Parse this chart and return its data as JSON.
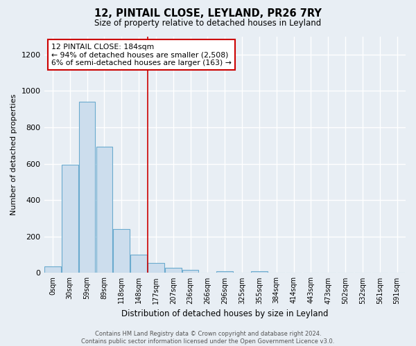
{
  "title_line1": "12, PINTAIL CLOSE, LEYLAND, PR26 7RY",
  "title_line2": "Size of property relative to detached houses in Leyland",
  "xlabel": "Distribution of detached houses by size in Leyland",
  "ylabel": "Number of detached properties",
  "bar_color": "#ccdded",
  "bar_edge_color": "#6aaace",
  "categories": [
    "0sqm",
    "30sqm",
    "59sqm",
    "89sqm",
    "118sqm",
    "148sqm",
    "177sqm",
    "207sqm",
    "236sqm",
    "266sqm",
    "296sqm",
    "325sqm",
    "355sqm",
    "384sqm",
    "414sqm",
    "443sqm",
    "473sqm",
    "502sqm",
    "532sqm",
    "561sqm",
    "591sqm"
  ],
  "values": [
    35,
    595,
    940,
    695,
    240,
    100,
    55,
    30,
    18,
    0,
    10,
    0,
    10,
    0,
    0,
    0,
    0,
    0,
    0,
    0,
    0
  ],
  "ylim": [
    0,
    1300
  ],
  "yticks": [
    0,
    200,
    400,
    600,
    800,
    1000,
    1200
  ],
  "property_line_x": 5.5,
  "annotation_text": "12 PINTAIL CLOSE: 184sqm\n← 94% of detached houses are smaller (2,508)\n6% of semi-detached houses are larger (163) →",
  "annotation_box_color": "#ffffff",
  "annotation_box_edge": "#cc0000",
  "footer_line1": "Contains HM Land Registry data © Crown copyright and database right 2024.",
  "footer_line2": "Contains public sector information licensed under the Open Government Licence v3.0.",
  "background_color": "#e8eef4",
  "grid_color": "#ffffff",
  "prop_line_color": "#cc0000"
}
